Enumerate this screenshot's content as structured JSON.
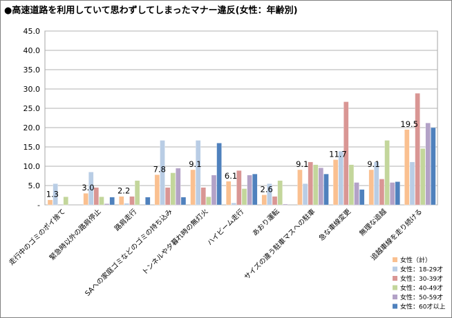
{
  "title": "●高速道路を利用していて思わずしてしまったマナー違反(女性：年齢別)",
  "chart_data": {
    "type": "bar",
    "title": "●高速道路を利用していて思わずしてしまったマナー違反(女性：年齢別)",
    "ylim": [
      0,
      45
    ],
    "yticks": [
      "-",
      "5.0",
      "10.0",
      "15.0",
      "20.0",
      "25.0",
      "30.0",
      "35.0",
      "40.0",
      "45.0"
    ],
    "grid": true,
    "legend_position": "bottom-right",
    "categories": [
      "走行中のゴミのポイ捨て",
      "緊急時以外の路肩停止",
      "路肩走行",
      "SAへの家庭ゴミなどのゴミの持ち込み",
      "トンネルや夕暮れ時の無灯火",
      "ハイビーム走行",
      "あおり運転",
      "サイズの違う駐車マスへの駐車",
      "急な車線変更",
      "無理な追越",
      "追越車線を走り続ける"
    ],
    "series": [
      {
        "name": "女性（計）",
        "color": "#fac090",
        "values": [
          1.3,
          3.0,
          2.2,
          7.8,
          9.1,
          6.1,
          2.6,
          9.1,
          11.7,
          9.1,
          19.5
        ]
      },
      {
        "name": "女性：18-29才",
        "color": "#b9cde5",
        "values": [
          5.5,
          8.5,
          0.4,
          16.7,
          16.7,
          0.5,
          5.5,
          5.5,
          13.9,
          11.1,
          11.1
        ]
      },
      {
        "name": "女性：30-39才",
        "color": "#d99694",
        "values": [
          0,
          4.5,
          2.2,
          4.5,
          4.5,
          8.9,
          2.2,
          11.1,
          26.7,
          6.7,
          28.9
        ]
      },
      {
        "name": "女性：40-49才",
        "color": "#c3d69b",
        "values": [
          2.1,
          2.1,
          6.3,
          8.3,
          2.1,
          4.2,
          6.3,
          10.4,
          10.4,
          16.7,
          14.6
        ]
      },
      {
        "name": "女性：50-59才",
        "color": "#b3a2c7",
        "values": [
          0,
          0.3,
          0,
          9.5,
          7.7,
          7.7,
          0.2,
          9.6,
          5.8,
          5.8,
          21.2
        ]
      },
      {
        "name": "女性：60才以上",
        "color": "#4f81bd",
        "values": [
          0,
          2.0,
          2.0,
          2.0,
          16.0,
          8.0,
          0,
          8.0,
          4.0,
          6.0,
          20.0
        ]
      }
    ],
    "data_labels": [
      "1.3",
      "3.0",
      "2.2",
      "7.8",
      "9.1",
      "6.1",
      "2.6",
      "9.1",
      "11.7",
      "9.1",
      "19.5"
    ]
  }
}
